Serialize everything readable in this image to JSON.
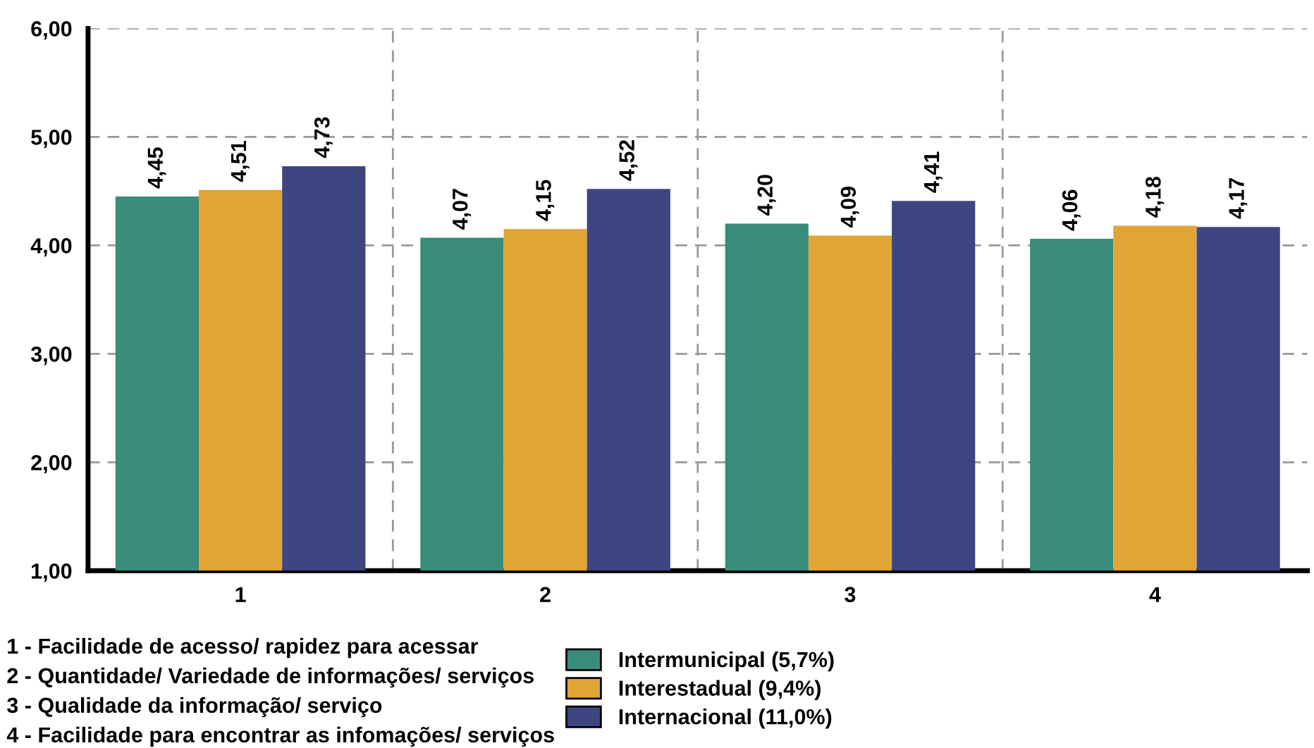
{
  "chart_data": {
    "type": "bar",
    "categories": [
      "1",
      "2",
      "3",
      "4"
    ],
    "series": [
      {
        "name": "Intermunicipal (5,7%)",
        "color": "#3a8c7a",
        "values": [
          4.45,
          4.07,
          4.2,
          4.06
        ],
        "value_labels": [
          "4,45",
          "4,07",
          "4,20",
          "4,06"
        ]
      },
      {
        "name": "Interestadual (9,4%)",
        "color": "#e0a535",
        "values": [
          4.51,
          4.15,
          4.09,
          4.18
        ],
        "value_labels": [
          "4,51",
          "4,15",
          "4,09",
          "4,18"
        ]
      },
      {
        "name": "Internacional (11,0%)",
        "color": "#3d4680",
        "values": [
          4.73,
          4.52,
          4.41,
          4.17
        ],
        "value_labels": [
          "4,73",
          "4,52",
          "4,41",
          "4,17"
        ]
      }
    ],
    "ylim": [
      1,
      6
    ],
    "yticks": [
      {
        "value": 1,
        "label": "1,00"
      },
      {
        "value": 2,
        "label": "2,00"
      },
      {
        "value": 3,
        "label": "3,00"
      },
      {
        "value": 4,
        "label": "4,00"
      },
      {
        "value": 5,
        "label": "5,00"
      },
      {
        "value": 6,
        "label": "6,00"
      }
    ],
    "grid": true,
    "legend": "bottom right",
    "annotations": [
      "1 - Facilidade de acesso/ rapidez para acessar",
      "2 - Quantidade/ Variedade de informações/ serviços",
      "3 - Qualidade da informação/ serviço",
      "4 - Facilidade para encontrar as infomações/ serviços"
    ]
  }
}
